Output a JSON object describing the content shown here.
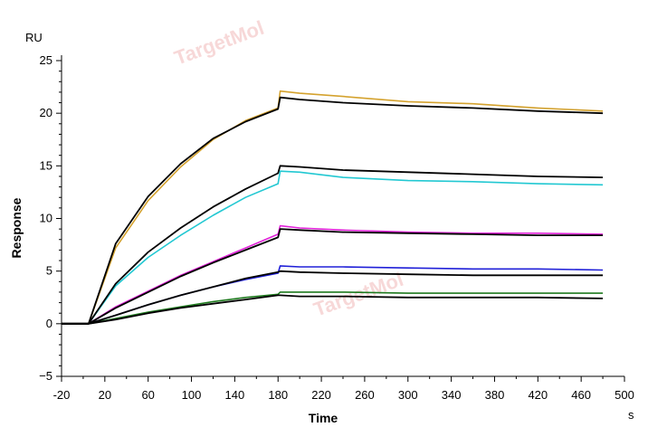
{
  "chart_data": {
    "type": "line",
    "title": "",
    "xlabel": "Time",
    "ylabel": "Response",
    "x_unit": "s",
    "y_unit": "RU",
    "xlim": [
      -20,
      500
    ],
    "ylim": [
      -5,
      25
    ],
    "x_ticks": [
      -20,
      20,
      60,
      100,
      140,
      180,
      220,
      260,
      300,
      340,
      380,
      420,
      460,
      500
    ],
    "y_ticks": [
      -5,
      0,
      5,
      10,
      15,
      20,
      25
    ],
    "grid": false,
    "legend": "none",
    "watermark": "TargetMol",
    "series": [
      {
        "role": "measured",
        "color": "#d4a22e",
        "x": [
          -20,
          5,
          30,
          60,
          90,
          120,
          150,
          180,
          182,
          200,
          240,
          300,
          360,
          420,
          480
        ],
        "y": [
          0,
          0,
          7.2,
          11.7,
          14.9,
          17.5,
          19.3,
          20.5,
          22.1,
          21.9,
          21.6,
          21.1,
          20.9,
          20.5,
          20.2
        ]
      },
      {
        "role": "fit",
        "color": "#000000",
        "x": [
          -20,
          5,
          30,
          60,
          90,
          120,
          150,
          180,
          182,
          200,
          240,
          300,
          360,
          420,
          480
        ],
        "y": [
          0,
          0,
          7.6,
          12.1,
          15.2,
          17.6,
          19.2,
          20.4,
          21.5,
          21.3,
          21.0,
          20.7,
          20.5,
          20.2,
          20.0
        ]
      },
      {
        "role": "measured",
        "color": "#22c8d2",
        "x": [
          -20,
          5,
          30,
          60,
          90,
          120,
          150,
          180,
          182,
          200,
          240,
          300,
          360,
          420,
          480
        ],
        "y": [
          0,
          0,
          3.6,
          6.3,
          8.4,
          10.3,
          12.0,
          13.3,
          14.5,
          14.4,
          13.9,
          13.6,
          13.5,
          13.3,
          13.2
        ]
      },
      {
        "role": "fit",
        "color": "#000000",
        "x": [
          -20,
          5,
          30,
          60,
          90,
          120,
          150,
          180,
          182,
          200,
          240,
          300,
          360,
          420,
          480
        ],
        "y": [
          0,
          0,
          3.8,
          6.8,
          9.1,
          11.1,
          12.8,
          14.3,
          15.0,
          14.9,
          14.6,
          14.4,
          14.2,
          14.0,
          13.9
        ]
      },
      {
        "role": "measured",
        "color": "#e020d8",
        "x": [
          -20,
          5,
          30,
          60,
          90,
          120,
          150,
          180,
          182,
          200,
          240,
          300,
          360,
          420,
          480
        ],
        "y": [
          0,
          0,
          1.6,
          3.1,
          4.6,
          5.9,
          7.2,
          8.5,
          9.3,
          9.1,
          8.9,
          8.7,
          8.6,
          8.6,
          8.5
        ]
      },
      {
        "role": "fit",
        "color": "#000000",
        "x": [
          -20,
          5,
          30,
          60,
          90,
          120,
          150,
          180,
          182,
          200,
          240,
          300,
          360,
          420,
          480
        ],
        "y": [
          0,
          0,
          1.5,
          3.0,
          4.5,
          5.8,
          7.0,
          8.2,
          9.0,
          8.9,
          8.7,
          8.6,
          8.5,
          8.4,
          8.4
        ]
      },
      {
        "role": "measured",
        "color": "#2020d8",
        "x": [
          -20,
          5,
          30,
          60,
          90,
          120,
          150,
          180,
          182,
          200,
          240,
          300,
          360,
          420,
          480
        ],
        "y": [
          0,
          0,
          0.8,
          1.8,
          2.7,
          3.5,
          4.2,
          4.8,
          5.5,
          5.4,
          5.4,
          5.3,
          5.2,
          5.2,
          5.1
        ]
      },
      {
        "role": "fit",
        "color": "#000000",
        "x": [
          -20,
          5,
          30,
          60,
          90,
          120,
          150,
          180,
          182,
          200,
          240,
          300,
          360,
          420,
          480
        ],
        "y": [
          0,
          0,
          0.8,
          1.8,
          2.7,
          3.5,
          4.3,
          4.9,
          5.0,
          4.9,
          4.8,
          4.7,
          4.6,
          4.6,
          4.6
        ]
      },
      {
        "role": "measured",
        "color": "#1e7a1e",
        "x": [
          -20,
          5,
          30,
          60,
          90,
          120,
          150,
          180,
          182,
          200,
          240,
          300,
          360,
          420,
          480
        ],
        "y": [
          0,
          0,
          0.5,
          1.1,
          1.6,
          2.1,
          2.5,
          2.8,
          3.0,
          3.0,
          3.0,
          2.9,
          2.9,
          2.9,
          2.9
        ]
      },
      {
        "role": "fit",
        "color": "#000000",
        "x": [
          -20,
          5,
          30,
          60,
          90,
          120,
          150,
          180,
          182,
          200,
          240,
          300,
          360,
          420,
          480
        ],
        "y": [
          0,
          0,
          0.4,
          1.0,
          1.5,
          1.9,
          2.3,
          2.7,
          2.7,
          2.6,
          2.6,
          2.5,
          2.5,
          2.5,
          2.4
        ]
      }
    ]
  }
}
